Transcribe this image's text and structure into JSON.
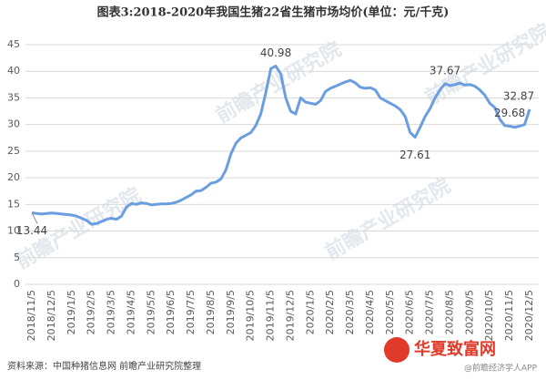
{
  "chart_data": {
    "type": "line",
    "title": "图表3:2018-2020年我国生猪22省生猪市场均价(单位：元/千克)",
    "source": "资料来源：中国种猪信息网 前瞻产业研究院整理",
    "watermarks": [
      "前瞻产业研究院",
      "华夏致富网",
      "@前瞻经济学人APP"
    ],
    "categories": [
      "2018/11/5",
      null,
      null,
      null,
      "2018/12/5",
      null,
      null,
      null,
      "2019/1/5",
      null,
      null,
      null,
      "2019/2/5",
      null,
      null,
      null,
      "2019/3/5",
      null,
      null,
      null,
      "2019/4/5",
      null,
      null,
      null,
      "2019/5/5",
      null,
      null,
      null,
      "2019/6/5",
      null,
      null,
      null,
      "2019/7/5",
      null,
      null,
      null,
      "2019/8/5",
      null,
      null,
      null,
      "2019/9/5",
      null,
      null,
      null,
      "2019/10/5",
      null,
      null,
      null,
      "2019/11/5",
      null,
      null,
      null,
      "2019/12/5",
      null,
      null,
      null,
      "2020/1/5",
      null,
      null,
      null,
      "2020/2/5",
      null,
      null,
      null,
      "2020/3/5",
      null,
      null,
      null,
      "2020/4/5",
      null,
      null,
      null,
      "2020/5/5",
      null,
      null,
      null,
      "2020/6/5",
      null,
      null,
      null,
      "2020/7/5",
      null,
      null,
      null,
      "2020/8/5",
      null,
      null,
      null,
      "2020/9/5",
      null,
      null,
      null,
      "2020/10/5",
      null,
      null,
      null,
      "2020/11/5",
      null,
      null,
      null,
      "2020/12/5"
    ],
    "series": [
      {
        "name": "生猪市场均价",
        "color": "#6a9ee0",
        "values": [
          13.44,
          13.3,
          13.2,
          13.3,
          13.4,
          13.3,
          13.2,
          13.1,
          13.0,
          12.8,
          12.4,
          12.0,
          11.3,
          11.4,
          11.8,
          12.2,
          12.4,
          12.2,
          12.8,
          14.5,
          15.2,
          15.0,
          15.3,
          15.2,
          14.9,
          15.0,
          15.1,
          15.1,
          15.2,
          15.4,
          15.8,
          16.3,
          16.8,
          17.5,
          17.6,
          18.2,
          19.0,
          19.2,
          19.8,
          21.5,
          24.5,
          26.5,
          27.5,
          28.0,
          28.5,
          29.8,
          32.0,
          36.0,
          40.5,
          40.98,
          39.5,
          35.0,
          32.5,
          32.0,
          35.0,
          34.2,
          34.0,
          33.8,
          34.5,
          36.2,
          36.8,
          37.2,
          37.6,
          38.0,
          38.3,
          37.8,
          37.0,
          36.8,
          36.9,
          36.5,
          35.0,
          34.5,
          34.0,
          33.5,
          32.8,
          31.5,
          28.5,
          27.61,
          29.5,
          31.5,
          33.0,
          35.0,
          36.5,
          37.67,
          37.3,
          37.5,
          37.8,
          37.4,
          37.5,
          37.2,
          36.5,
          35.5,
          34.0,
          33.2,
          31.0,
          29.8,
          29.68,
          29.5,
          29.7,
          30.0,
          32.87
        ],
        "value_labels": [
          "13.44",
          null,
          null,
          null,
          null,
          null,
          null,
          null,
          null,
          null,
          null,
          null,
          null,
          null,
          null,
          null,
          null,
          null,
          null,
          null,
          null,
          null,
          null,
          null,
          null,
          null,
          null,
          null,
          null,
          null,
          null,
          null,
          null,
          null,
          null,
          null,
          null,
          null,
          null,
          null,
          null,
          null,
          null,
          null,
          null,
          null,
          null,
          null,
          null,
          "40.98",
          null,
          null,
          null,
          null,
          null,
          null,
          null,
          null,
          null,
          null,
          null,
          null,
          null,
          null,
          null,
          null,
          null,
          null,
          null,
          null,
          null,
          null,
          null,
          null,
          null,
          null,
          null,
          "27.61",
          null,
          null,
          null,
          null,
          null,
          "37.67",
          null,
          null,
          null,
          null,
          null,
          null,
          null,
          null,
          null,
          null,
          null,
          null,
          "29.68",
          null,
          null,
          null,
          "32.87"
        ]
      }
    ],
    "ylim": [
      0,
      45
    ],
    "yticks": [
      0,
      5,
      10,
      15,
      20,
      25,
      30,
      35,
      40,
      45
    ],
    "grid": true
  }
}
